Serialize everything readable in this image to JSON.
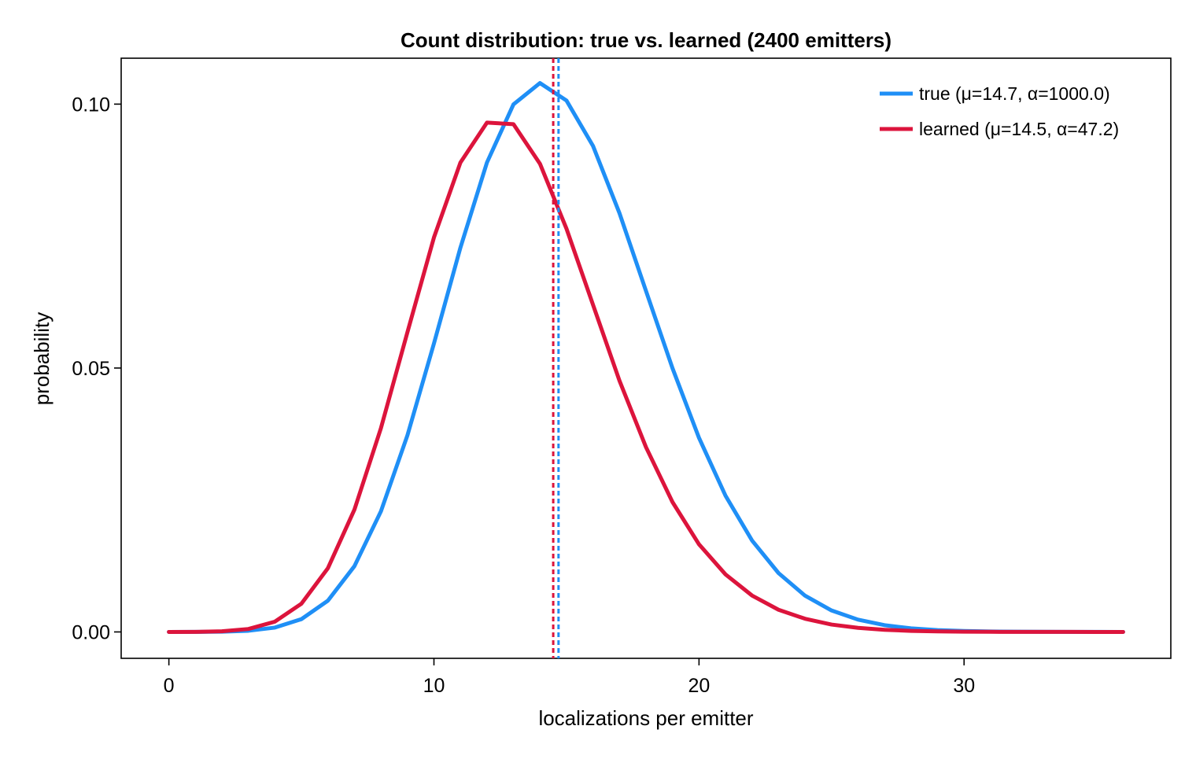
{
  "chart_data": {
    "type": "line",
    "title": "Count distribution: true vs. learned  (2400 emitters)",
    "xlabel": "localizations per emitter",
    "ylabel": "probability",
    "xlim": [
      -1.8,
      37.8
    ],
    "ylim": [
      -0.005,
      0.1087
    ],
    "xticks": [
      0,
      10,
      20,
      30
    ],
    "xtick_labels": [
      "0",
      "10",
      "20",
      "30"
    ],
    "yticks": [
      0.0,
      0.05,
      0.1
    ],
    "ytick_labels": [
      "0.00",
      "0.05",
      "0.10"
    ],
    "grid": false,
    "legend_position": "top-right",
    "x": [
      0,
      1,
      2,
      3,
      4,
      5,
      6,
      7,
      8,
      9,
      10,
      11,
      12,
      13,
      14,
      15,
      16,
      17,
      18,
      19,
      20,
      21,
      22,
      23,
      24,
      25,
      26,
      27,
      28,
      29,
      30,
      31,
      32,
      33,
      34,
      35,
      36
    ],
    "series": [
      {
        "name": "true  (μ=14.7, α=1000.0)",
        "color": "#1f8ff6",
        "mean": 14.7,
        "values": [
          4e-07,
          6.1e-06,
          4.5e-05,
          0.000224,
          0.000823,
          0.00242,
          0.00593,
          0.01246,
          0.02286,
          0.03726,
          0.05465,
          0.07283,
          0.08894,
          0.09995,
          0.10399,
          0.10068,
          0.09209,
          0.07933,
          0.0646,
          0.04996,
          0.03677,
          0.02581,
          0.01733,
          0.01115,
          0.00687,
          0.00407,
          0.00233,
          0.00128,
          0.00068,
          0.00035,
          0.00017,
          8e-05,
          4e-05,
          2e-05,
          8e-06,
          3e-06,
          1e-06
        ]
      },
      {
        "name": "learned (μ=14.5, α=47.2)",
        "color": "#dc143c",
        "mean": 14.5,
        "values": [
          1.1e-06,
          1.66e-05,
          0.000119,
          0.00056,
          0.00195,
          0.00535,
          0.01209,
          0.02317,
          0.03861,
          0.0568,
          0.07474,
          0.08894,
          0.0965,
          0.0962,
          0.0887,
          0.0764,
          0.062,
          0.0476,
          0.035,
          0.0246,
          0.0166,
          0.0109,
          0.0069,
          0.0042,
          0.0025,
          0.0014,
          0.00077,
          0.0004,
          0.0002,
          0.0001,
          5e-05,
          2e-05,
          1e-05,
          5e-06,
          2e-06,
          1e-06,
          5e-07
        ]
      }
    ]
  }
}
